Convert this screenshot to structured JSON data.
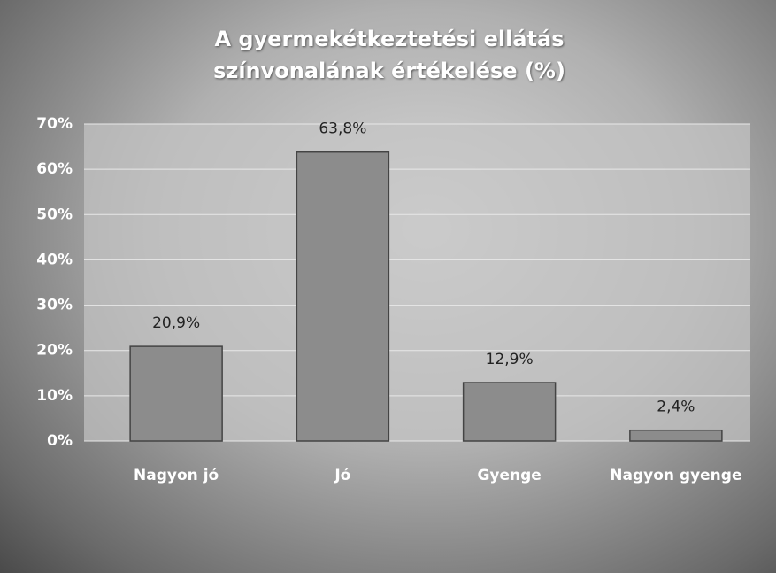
{
  "chart_data": {
    "type": "bar",
    "title": "A gyermekétkeztetési ellátás színvonalának értékelése (%)",
    "categories": [
      "Nagyon jó",
      "Jó",
      "Gyenge",
      "Nagyon gyenge"
    ],
    "values": [
      20.9,
      63.8,
      12.9,
      2.4
    ],
    "value_labels": [
      "20,9%",
      "63,8%",
      "12,9%",
      "2,4%"
    ],
    "color": "#8c8c8c",
    "ylim": [
      0,
      70
    ],
    "yticks": [
      {
        "value": 0,
        "label": "0%"
      },
      {
        "value": 10,
        "label": "10%"
      },
      {
        "value": 20,
        "label": "20%"
      },
      {
        "value": 30,
        "label": "30%"
      },
      {
        "value": 40,
        "label": "40%"
      },
      {
        "value": 50,
        "label": "50%"
      },
      {
        "value": 60,
        "label": "60%"
      },
      {
        "value": 70,
        "label": "70%"
      }
    ],
    "grid": true
  }
}
